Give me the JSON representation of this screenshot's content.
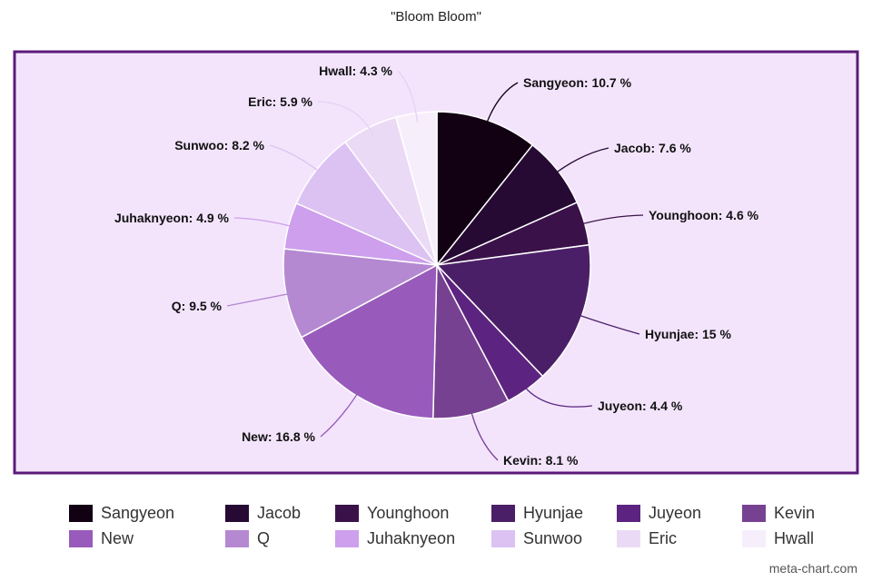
{
  "chart_data": {
    "type": "pie",
    "title": "\"Bloom Bloom\"",
    "unit": "%",
    "slices": [
      {
        "label": "Sangyeon",
        "value": 10.7,
        "text": "Sangyeon: 10.7 %",
        "color": "#120013"
      },
      {
        "label": "Jacob",
        "value": 7.6,
        "text": "Jacob: 7.6 %",
        "color": "#260a34"
      },
      {
        "label": "Younghoon",
        "value": 4.6,
        "text": "Younghoon: 4.6 %",
        "color": "#3a1249"
      },
      {
        "label": "Hyunjae",
        "value": 15,
        "text": "Hyunjae: 15 %",
        "color": "#4b1f68"
      },
      {
        "label": "Juyeon",
        "value": 4.4,
        "text": "Juyeon: 4.4 %",
        "color": "#5c2480"
      },
      {
        "label": "Kevin",
        "value": 8.1,
        "text": "Kevin: 8.1 %",
        "color": "#774191"
      },
      {
        "label": "New",
        "value": 16.8,
        "text": "New: 16.8 %",
        "color": "#985bbc"
      },
      {
        "label": "Q",
        "value": 9.5,
        "text": "Q: 9.5 %",
        "color": "#b589d1"
      },
      {
        "label": "Juhaknyeon",
        "value": 4.9,
        "text": "Juhaknyeon: 4.9 %",
        "color": "#cd9fec"
      },
      {
        "label": "Sunwoo",
        "value": 8.2,
        "text": "Sunwoo: 8.2 %",
        "color": "#dcc2f2"
      },
      {
        "label": "Eric",
        "value": 5.9,
        "text": "Eric: 5.9 %",
        "color": "#ebdaf5"
      },
      {
        "label": "Hwall",
        "value": 4.3,
        "text": "Hwall: 4.3 %",
        "color": "#f7eefb"
      }
    ],
    "plot_background": "#f3e4fc",
    "plot_border": "#5b1a7a",
    "legend_position": "bottom"
  },
  "watermark": "meta-chart.com"
}
